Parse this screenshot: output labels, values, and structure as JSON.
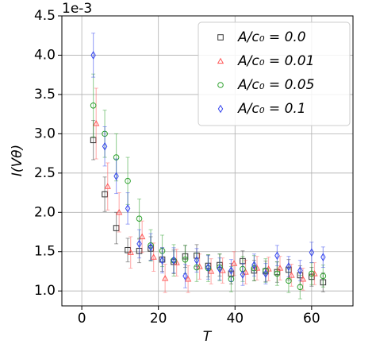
{
  "chart_data": {
    "type": "scatter",
    "y_offset_label": "1e-3",
    "x_label": "T",
    "y_label": "I(Vθ)",
    "xlim": [
      -5.2,
      70.8
    ],
    "xticks": [
      0,
      20,
      40,
      60
    ],
    "ylim": [
      0.81,
      4.5
    ],
    "yticks": [
      {
        "value": 1,
        "label": "1.0"
      },
      1.5,
      {
        "value": 2,
        "label": "2.0"
      },
      2.5,
      {
        "value": 3,
        "label": "3.0"
      },
      3.5,
      {
        "value": 4,
        "label": "4.0"
      },
      4.5
    ],
    "grid": true,
    "legend": "upper right",
    "series": [
      {
        "name": "A/c₀ = 0.0",
        "color": "#333333",
        "marker": "square",
        "x": [
          3,
          6,
          9,
          12,
          15,
          18,
          21,
          24,
          27,
          30,
          33,
          36,
          39,
          42,
          45,
          48,
          51,
          54,
          57,
          60,
          63
        ],
        "values": [
          2.92,
          2.23,
          1.8,
          1.52,
          1.51,
          1.54,
          1.4,
          1.37,
          1.44,
          1.45,
          1.32,
          1.33,
          1.22,
          1.38,
          1.26,
          1.25,
          1.24,
          1.27,
          1.2,
          1.18,
          1.11
        ],
        "errors": [
          0.25,
          0.22,
          0.2,
          0.15,
          0.15,
          0.15,
          0.15,
          0.15,
          0.14,
          0.14,
          0.14,
          0.14,
          0.13,
          0.13,
          0.13,
          0.13,
          0.13,
          0.13,
          0.12,
          0.12,
          0.12
        ]
      },
      {
        "name": "A/c₀ = 0.01",
        "color": "#ff5a5a",
        "marker": "triangle",
        "x": [
          3.75,
          6.75,
          9.75,
          12.75,
          15.75,
          18.75,
          21.75,
          24.75,
          27.75,
          30.75,
          33.75,
          36.75,
          39.75,
          42.75,
          45.75,
          48.75,
          51.75,
          54.75,
          57.75,
          60.75
        ],
        "values": [
          3.13,
          2.33,
          2.0,
          1.49,
          1.69,
          1.43,
          1.16,
          1.36,
          1.15,
          1.31,
          1.25,
          1.26,
          1.35,
          1.24,
          1.29,
          1.28,
          1.29,
          1.2,
          1.15,
          1.22
        ],
        "errors": [
          0.45,
          0.3,
          0.25,
          0.2,
          0.2,
          0.18,
          0.18,
          0.17,
          0.17,
          0.16,
          0.16,
          0.16,
          0.15,
          0.15,
          0.15,
          0.15,
          0.15,
          0.14,
          0.14,
          0.14
        ]
      },
      {
        "name": "A/c₀ = 0.05",
        "color": "#2ca02c",
        "marker": "circle",
        "x": [
          3,
          6,
          9,
          12,
          15,
          18,
          21,
          24,
          27,
          30,
          33,
          36,
          39,
          42,
          45,
          48,
          51,
          54,
          57,
          60,
          63
        ],
        "values": [
          3.36,
          3.0,
          2.7,
          2.4,
          1.92,
          1.58,
          1.51,
          1.39,
          1.4,
          1.3,
          1.29,
          1.3,
          1.15,
          1.28,
          1.29,
          1.26,
          1.22,
          1.13,
          1.05,
          1.22,
          1.19
        ],
        "errors": [
          0.4,
          0.3,
          0.3,
          0.3,
          0.25,
          0.2,
          0.2,
          0.2,
          0.18,
          0.18,
          0.17,
          0.17,
          0.16,
          0.16,
          0.16,
          0.15,
          0.15,
          0.15,
          0.15,
          0.14,
          0.14
        ]
      },
      {
        "name": "A/c₀ = 0.1",
        "color": "#3344ee",
        "marker": "diamond",
        "x": [
          3,
          6,
          9,
          12,
          15,
          18,
          21,
          24,
          27,
          30,
          33,
          36,
          39,
          42,
          45,
          48,
          51,
          54,
          57,
          60,
          63
        ],
        "values": [
          4.0,
          2.84,
          2.46,
          2.05,
          1.6,
          1.56,
          1.39,
          1.39,
          1.19,
          1.39,
          1.3,
          1.28,
          1.26,
          1.21,
          1.33,
          1.22,
          1.45,
          1.31,
          1.26,
          1.49,
          1.43
        ],
        "errors": [
          0.28,
          0.25,
          0.22,
          0.2,
          0.18,
          0.17,
          0.16,
          0.16,
          0.15,
          0.15,
          0.15,
          0.14,
          0.14,
          0.14,
          0.14,
          0.13,
          0.13,
          0.13,
          0.13,
          0.13,
          0.13
        ]
      }
    ]
  }
}
